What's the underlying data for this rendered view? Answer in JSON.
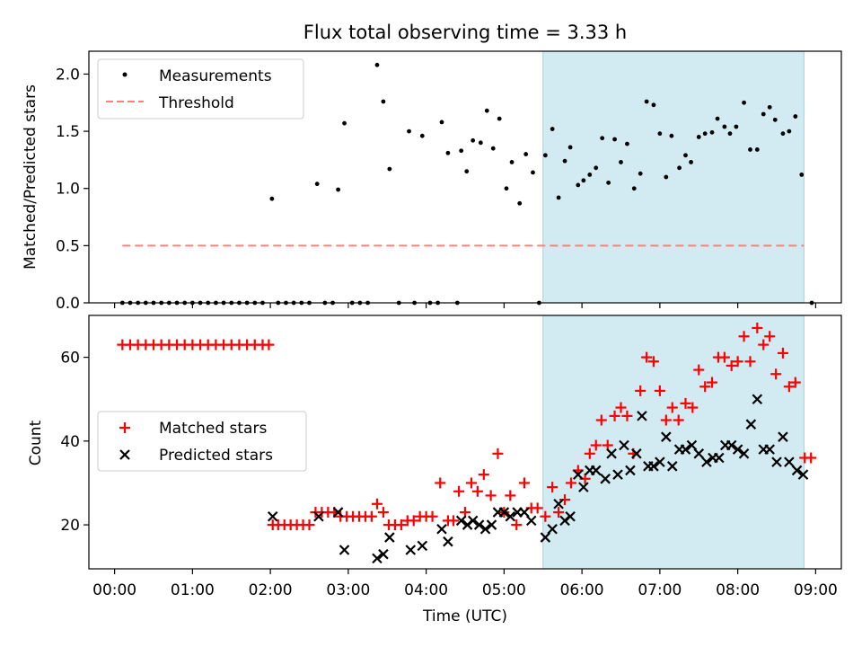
{
  "chart_data": [
    {
      "type": "scatter",
      "title": "Flux total observing time = 3.33 h",
      "ylabel": "Matched/Predicted stars",
      "xlabel": "",
      "ylim": [
        0,
        2.2
      ],
      "xlim_hours": [
        -0.33,
        9.33
      ],
      "yticks": [
        "0.0",
        "0.5",
        "1.0",
        "1.5",
        "2.0"
      ],
      "highlight_span_hours": [
        5.5,
        8.85
      ],
      "legend_position": "top-left",
      "series": [
        {
          "name": "Measurements",
          "marker": "dot",
          "color": "#000000",
          "points": [
            [
              0.1,
              0
            ],
            [
              0.2,
              0
            ],
            [
              0.3,
              0
            ],
            [
              0.4,
              0
            ],
            [
              0.5,
              0
            ],
            [
              0.6,
              0
            ],
            [
              0.7,
              0
            ],
            [
              0.8,
              0
            ],
            [
              0.9,
              0
            ],
            [
              1.0,
              0
            ],
            [
              1.1,
              0
            ],
            [
              1.2,
              0
            ],
            [
              1.3,
              0
            ],
            [
              1.4,
              0
            ],
            [
              1.5,
              0
            ],
            [
              1.6,
              0
            ],
            [
              1.7,
              0
            ],
            [
              1.8,
              0
            ],
            [
              1.9,
              0
            ],
            [
              2.02,
              0.91
            ],
            [
              2.1,
              0
            ],
            [
              2.2,
              0
            ],
            [
              2.3,
              0
            ],
            [
              2.4,
              0
            ],
            [
              2.5,
              0
            ],
            [
              2.6,
              1.04
            ],
            [
              2.7,
              0
            ],
            [
              2.8,
              0
            ],
            [
              2.87,
              0.99
            ],
            [
              2.95,
              1.57
            ],
            [
              3.05,
              0
            ],
            [
              3.15,
              0
            ],
            [
              3.25,
              0
            ],
            [
              3.37,
              2.08
            ],
            [
              3.45,
              1.76
            ],
            [
              3.53,
              1.17
            ],
            [
              3.65,
              0
            ],
            [
              3.78,
              1.5
            ],
            [
              3.85,
              0
            ],
            [
              3.95,
              1.46
            ],
            [
              4.05,
              0
            ],
            [
              4.15,
              0
            ],
            [
              4.2,
              1.58
            ],
            [
              4.28,
              1.31
            ],
            [
              4.4,
              0
            ],
            [
              4.45,
              1.33
            ],
            [
              4.52,
              1.15
            ],
            [
              4.6,
              1.42
            ],
            [
              4.7,
              1.4
            ],
            [
              4.78,
              1.68
            ],
            [
              4.86,
              1.35
            ],
            [
              4.94,
              1.61
            ],
            [
              5.03,
              1.0
            ],
            [
              5.1,
              1.23
            ],
            [
              5.2,
              0.87
            ],
            [
              5.28,
              1.3
            ],
            [
              5.37,
              1.14
            ],
            [
              5.45,
              0
            ],
            [
              5.53,
              1.29
            ],
            [
              5.62,
              1.52
            ],
            [
              5.7,
              0.92
            ],
            [
              5.78,
              1.24
            ],
            [
              5.85,
              1.36
            ],
            [
              5.95,
              1.03
            ],
            [
              6.02,
              1.07
            ],
            [
              6.1,
              1.12
            ],
            [
              6.18,
              1.18
            ],
            [
              6.26,
              1.44
            ],
            [
              6.34,
              1.05
            ],
            [
              6.42,
              1.43
            ],
            [
              6.5,
              1.23
            ],
            [
              6.58,
              1.39
            ],
            [
              6.67,
              1.0
            ],
            [
              6.75,
              1.13
            ],
            [
              6.83,
              1.76
            ],
            [
              6.92,
              1.73
            ],
            [
              7.0,
              1.48
            ],
            [
              7.08,
              1.1
            ],
            [
              7.15,
              1.46
            ],
            [
              7.25,
              1.18
            ],
            [
              7.33,
              1.29
            ],
            [
              7.4,
              1.23
            ],
            [
              7.5,
              1.45
            ],
            [
              7.58,
              1.48
            ],
            [
              7.67,
              1.49
            ],
            [
              7.74,
              1.61
            ],
            [
              7.83,
              1.54
            ],
            [
              7.9,
              1.48
            ],
            [
              7.98,
              1.54
            ],
            [
              8.08,
              1.75
            ],
            [
              8.16,
              1.34
            ],
            [
              8.25,
              1.34
            ],
            [
              8.33,
              1.65
            ],
            [
              8.41,
              1.71
            ],
            [
              8.48,
              1.6
            ],
            [
              8.58,
              1.48
            ],
            [
              8.66,
              1.5
            ],
            [
              8.74,
              1.63
            ],
            [
              8.82,
              1.12
            ],
            [
              8.95,
              0
            ]
          ]
        },
        {
          "name": "Threshold",
          "style": "dashed",
          "color": "#ff7f7f",
          "points": [
            [
              0.1,
              0.5
            ],
            [
              8.85,
              0.5
            ]
          ]
        }
      ]
    },
    {
      "type": "scatter",
      "title": "",
      "ylabel": "Count",
      "xlabel": "Time (UTC)",
      "ylim": [
        9.5,
        70
      ],
      "xlim_hours": [
        -0.33,
        9.33
      ],
      "yticks": [
        "20",
        "40",
        "60"
      ],
      "xticks": [
        "00:00",
        "01:00",
        "02:00",
        "03:00",
        "04:00",
        "05:00",
        "06:00",
        "07:00",
        "08:00",
        "09:00"
      ],
      "highlight_span_hours": [
        5.5,
        8.85
      ],
      "legend_position": "center-left",
      "series": [
        {
          "name": "Matched stars",
          "marker": "plus",
          "color": "#ff0000",
          "points": [
            [
              0.1,
              63
            ],
            [
              0.2,
              63
            ],
            [
              0.3,
              63
            ],
            [
              0.4,
              63
            ],
            [
              0.5,
              63
            ],
            [
              0.6,
              63
            ],
            [
              0.7,
              63
            ],
            [
              0.8,
              63
            ],
            [
              0.9,
              63
            ],
            [
              1.0,
              63
            ],
            [
              1.1,
              63
            ],
            [
              1.2,
              63
            ],
            [
              1.3,
              63
            ],
            [
              1.4,
              63
            ],
            [
              1.5,
              63
            ],
            [
              1.6,
              63
            ],
            [
              1.7,
              63
            ],
            [
              1.8,
              63
            ],
            [
              1.9,
              63
            ],
            [
              1.98,
              63
            ],
            [
              2.03,
              20
            ],
            [
              2.1,
              20
            ],
            [
              2.18,
              20
            ],
            [
              2.26,
              20
            ],
            [
              2.34,
              20
            ],
            [
              2.42,
              20
            ],
            [
              2.5,
              20
            ],
            [
              2.58,
              23
            ],
            [
              2.66,
              23
            ],
            [
              2.74,
              23
            ],
            [
              2.82,
              23
            ],
            [
              2.9,
              22
            ],
            [
              2.98,
              22
            ],
            [
              3.06,
              22
            ],
            [
              3.14,
              22
            ],
            [
              3.22,
              22
            ],
            [
              3.3,
              22
            ],
            [
              3.37,
              25
            ],
            [
              3.45,
              23
            ],
            [
              3.52,
              20
            ],
            [
              3.6,
              20
            ],
            [
              3.68,
              20
            ],
            [
              3.76,
              21
            ],
            [
              3.84,
              21
            ],
            [
              3.92,
              22
            ],
            [
              4.0,
              22
            ],
            [
              4.08,
              22
            ],
            [
              4.18,
              30
            ],
            [
              4.28,
              21
            ],
            [
              4.35,
              21
            ],
            [
              4.42,
              28
            ],
            [
              4.5,
              23
            ],
            [
              4.58,
              30
            ],
            [
              4.66,
              28
            ],
            [
              4.74,
              32
            ],
            [
              4.83,
              27
            ],
            [
              4.92,
              37
            ],
            [
              5.0,
              23
            ],
            [
              5.08,
              27
            ],
            [
              5.16,
              20
            ],
            [
              5.26,
              30
            ],
            [
              5.35,
              24
            ],
            [
              5.43,
              24
            ],
            [
              5.53,
              22
            ],
            [
              5.62,
              29
            ],
            [
              5.7,
              23
            ],
            [
              5.78,
              26
            ],
            [
              5.86,
              30
            ],
            [
              5.95,
              33
            ],
            [
              6.04,
              31
            ],
            [
              6.1,
              37
            ],
            [
              6.18,
              39
            ],
            [
              6.25,
              45
            ],
            [
              6.33,
              39
            ],
            [
              6.42,
              46
            ],
            [
              6.5,
              48
            ],
            [
              6.58,
              46
            ],
            [
              6.66,
              37
            ],
            [
              6.75,
              52
            ],
            [
              6.83,
              60
            ],
            [
              6.92,
              59
            ],
            [
              7.0,
              52
            ],
            [
              7.08,
              45
            ],
            [
              7.16,
              48
            ],
            [
              7.24,
              45
            ],
            [
              7.33,
              49
            ],
            [
              7.42,
              48
            ],
            [
              7.5,
              57
            ],
            [
              7.58,
              53
            ],
            [
              7.67,
              54
            ],
            [
              7.75,
              60
            ],
            [
              7.83,
              60
            ],
            [
              7.92,
              58
            ],
            [
              8.0,
              59
            ],
            [
              8.08,
              65
            ],
            [
              8.16,
              59
            ],
            [
              8.25,
              67
            ],
            [
              8.33,
              63
            ],
            [
              8.41,
              65
            ],
            [
              8.49,
              56
            ],
            [
              8.58,
              61
            ],
            [
              8.66,
              53
            ],
            [
              8.74,
              54
            ],
            [
              8.86,
              36
            ],
            [
              8.94,
              36
            ]
          ]
        },
        {
          "name": "Predicted stars",
          "marker": "x",
          "color": "#000000",
          "points": [
            [
              2.03,
              22
            ],
            [
              2.62,
              22
            ],
            [
              2.87,
              23
            ],
            [
              2.95,
              14
            ],
            [
              3.37,
              12
            ],
            [
              3.45,
              13
            ],
            [
              3.53,
              17
            ],
            [
              3.8,
              14
            ],
            [
              3.95,
              15
            ],
            [
              4.2,
              19
            ],
            [
              4.28,
              16
            ],
            [
              4.45,
              21
            ],
            [
              4.53,
              20
            ],
            [
              4.6,
              21
            ],
            [
              4.68,
              20
            ],
            [
              4.76,
              19
            ],
            [
              4.84,
              20
            ],
            [
              4.92,
              23
            ],
            [
              5.0,
              23
            ],
            [
              5.08,
              22
            ],
            [
              5.17,
              23
            ],
            [
              5.26,
              23
            ],
            [
              5.35,
              21
            ],
            [
              5.53,
              17
            ],
            [
              5.62,
              19
            ],
            [
              5.7,
              25
            ],
            [
              5.78,
              21
            ],
            [
              5.85,
              22
            ],
            [
              5.95,
              32
            ],
            [
              6.02,
              29
            ],
            [
              6.1,
              33
            ],
            [
              6.18,
              33
            ],
            [
              6.3,
              31
            ],
            [
              6.38,
              37
            ],
            [
              6.46,
              32
            ],
            [
              6.54,
              39
            ],
            [
              6.62,
              33
            ],
            [
              6.7,
              37
            ],
            [
              6.77,
              46
            ],
            [
              6.85,
              34
            ],
            [
              6.92,
              34
            ],
            [
              7.0,
              35
            ],
            [
              7.08,
              41
            ],
            [
              7.16,
              34
            ],
            [
              7.25,
              38
            ],
            [
              7.33,
              38
            ],
            [
              7.41,
              39
            ],
            [
              7.5,
              37
            ],
            [
              7.6,
              35
            ],
            [
              7.68,
              36
            ],
            [
              7.76,
              36
            ],
            [
              7.84,
              39
            ],
            [
              7.92,
              39
            ],
            [
              8.0,
              38
            ],
            [
              8.08,
              37
            ],
            [
              8.17,
              44
            ],
            [
              8.25,
              50
            ],
            [
              8.33,
              38
            ],
            [
              8.41,
              38
            ],
            [
              8.5,
              35
            ],
            [
              8.58,
              41
            ],
            [
              8.66,
              35
            ],
            [
              8.76,
              33
            ],
            [
              8.84,
              32
            ]
          ]
        }
      ]
    }
  ]
}
